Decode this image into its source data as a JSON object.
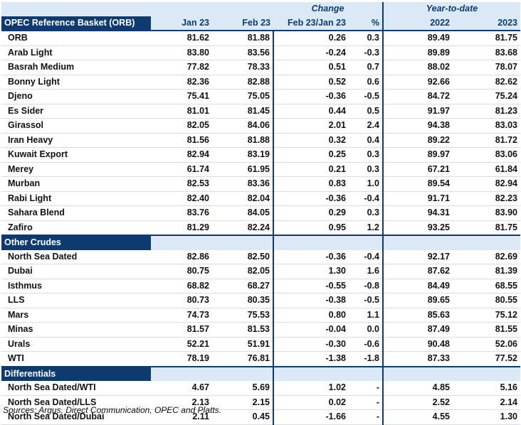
{
  "header": {
    "title": "OPEC Reference Basket (ORB)",
    "col_jan": "Jan 23",
    "col_feb": "Feb 23",
    "change_label": "Change",
    "col_change": "Feb 23/Jan 23",
    "col_pct": "%",
    "ytd_label": "Year-to-date",
    "col_2022": "2022",
    "col_2023": "2023"
  },
  "orb_rows": [
    {
      "name": "ORB",
      "jan": "81.62",
      "feb": "81.88",
      "chg": "0.26",
      "pct": "0.3",
      "y2022": "89.49",
      "y2023": "81.75"
    },
    {
      "name": "Arab Light",
      "jan": "83.80",
      "feb": "83.56",
      "chg": "-0.24",
      "pct": "-0.3",
      "y2022": "89.89",
      "y2023": "83.68"
    },
    {
      "name": "Basrah Medium",
      "jan": "77.82",
      "feb": "78.33",
      "chg": "0.51",
      "pct": "0.7",
      "y2022": "88.02",
      "y2023": "78.07"
    },
    {
      "name": "Bonny Light",
      "jan": "82.36",
      "feb": "82.88",
      "chg": "0.52",
      "pct": "0.6",
      "y2022": "92.66",
      "y2023": "82.62"
    },
    {
      "name": "Djeno",
      "jan": "75.41",
      "feb": "75.05",
      "chg": "-0.36",
      "pct": "-0.5",
      "y2022": "84.72",
      "y2023": "75.24"
    },
    {
      "name": "Es Sider",
      "jan": "81.01",
      "feb": "81.45",
      "chg": "0.44",
      "pct": "0.5",
      "y2022": "91.97",
      "y2023": "81.23"
    },
    {
      "name": "Girassol",
      "jan": "82.05",
      "feb": "84.06",
      "chg": "2.01",
      "pct": "2.4",
      "y2022": "94.38",
      "y2023": "83.03"
    },
    {
      "name": "Iran Heavy",
      "jan": "81.56",
      "feb": "81.88",
      "chg": "0.32",
      "pct": "0.4",
      "y2022": "89.22",
      "y2023": "81.72"
    },
    {
      "name": "Kuwait Export",
      "jan": "82.94",
      "feb": "83.19",
      "chg": "0.25",
      "pct": "0.3",
      "y2022": "89.97",
      "y2023": "83.06"
    },
    {
      "name": "Merey",
      "jan": "61.74",
      "feb": "61.95",
      "chg": "0.21",
      "pct": "0.3",
      "y2022": "67.21",
      "y2023": "61.84"
    },
    {
      "name": "Murban",
      "jan": "82.53",
      "feb": "83.36",
      "chg": "0.83",
      "pct": "1.0",
      "y2022": "89.54",
      "y2023": "82.94"
    },
    {
      "name": "Rabi Light",
      "jan": "82.40",
      "feb": "82.04",
      "chg": "-0.36",
      "pct": "-0.4",
      "y2022": "91.71",
      "y2023": "82.23"
    },
    {
      "name": "Sahara Blend",
      "jan": "83.76",
      "feb": "84.05",
      "chg": "0.29",
      "pct": "0.3",
      "y2022": "94.31",
      "y2023": "83.90"
    },
    {
      "name": "Zafiro",
      "jan": "81.29",
      "feb": "82.24",
      "chg": "0.95",
      "pct": "1.2",
      "y2022": "93.25",
      "y2023": "81.75"
    }
  ],
  "other_label": "Other Crudes",
  "other_rows": [
    {
      "name": "North Sea Dated",
      "jan": "82.86",
      "feb": "82.50",
      "chg": "-0.36",
      "pct": "-0.4",
      "y2022": "92.17",
      "y2023": "82.69"
    },
    {
      "name": "Dubai",
      "jan": "80.75",
      "feb": "82.05",
      "chg": "1.30",
      "pct": "1.6",
      "y2022": "87.62",
      "y2023": "81.39"
    },
    {
      "name": "Isthmus",
      "jan": "68.82",
      "feb": "68.27",
      "chg": "-0.55",
      "pct": "-0.8",
      "y2022": "84.49",
      "y2023": "68.55"
    },
    {
      "name": "LLS",
      "jan": "80.73",
      "feb": "80.35",
      "chg": "-0.38",
      "pct": "-0.5",
      "y2022": "89.65",
      "y2023": "80.55"
    },
    {
      "name": "Mars",
      "jan": "74.73",
      "feb": "75.53",
      "chg": "0.80",
      "pct": "1.1",
      "y2022": "85.63",
      "y2023": "75.12"
    },
    {
      "name": "Minas",
      "jan": "81.57",
      "feb": "81.53",
      "chg": "-0.04",
      "pct": "0.0",
      "y2022": "87.49",
      "y2023": "81.55"
    },
    {
      "name": "Urals",
      "jan": "52.21",
      "feb": "51.91",
      "chg": "-0.30",
      "pct": "-0.6",
      "y2022": "90.48",
      "y2023": "52.06"
    },
    {
      "name": "WTI",
      "jan": "78.19",
      "feb": "76.81",
      "chg": "-1.38",
      "pct": "-1.8",
      "y2022": "87.33",
      "y2023": "77.52"
    }
  ],
  "diff_label": "Differentials",
  "diff_rows": [
    {
      "name": "North Sea Dated/WTI",
      "jan": "4.67",
      "feb": "5.69",
      "chg": "1.02",
      "pct": "-",
      "y2022": "4.85",
      "y2023": "5.16"
    },
    {
      "name": "North Sea Dated/LLS",
      "jan": "2.13",
      "feb": "2.15",
      "chg": "0.02",
      "pct": "-",
      "y2022": "2.52",
      "y2023": "2.14"
    },
    {
      "name": "North Sea Dated/Dubai",
      "jan": "2.11",
      "feb": "0.45",
      "chg": "-1.66",
      "pct": "-",
      "y2022": "4.55",
      "y2023": "1.30"
    }
  ],
  "source": "Sources: Argus, Direct Communication, OPEC and Platts."
}
